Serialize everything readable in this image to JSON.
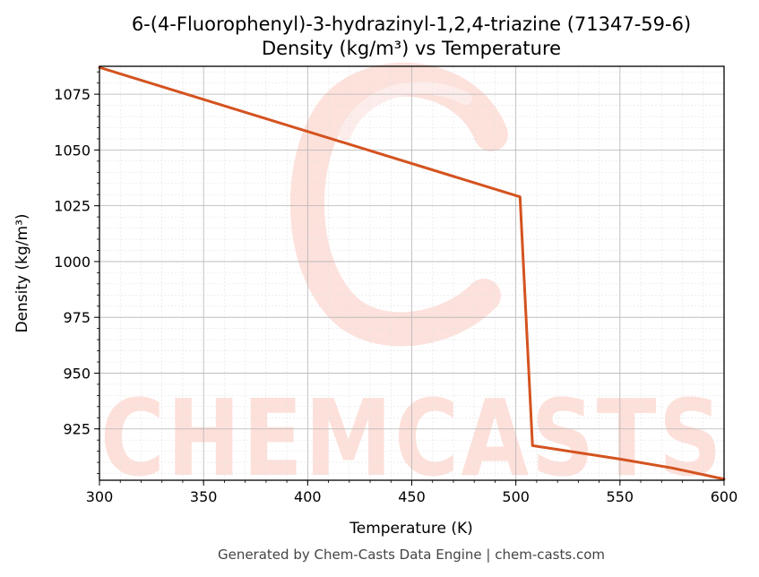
{
  "chart_data": {
    "type": "line",
    "title": "6-(4-Fluorophenyl)-3-hydrazinyl-1,2,4-triazine (71347-59-6)",
    "subtitle": "Density (kg/m³) vs Temperature",
    "xlabel": "Temperature (K)",
    "ylabel": "Density (kg/m³)",
    "xlim": [
      300,
      600
    ],
    "ylim": [
      902,
      1087.5
    ],
    "xticks": [
      300,
      350,
      400,
      450,
      500,
      550,
      600
    ],
    "yticks": [
      925,
      950,
      975,
      1000,
      1025,
      1050,
      1075
    ],
    "grid": true,
    "series": [
      {
        "color": "#d4531f",
        "x": [
          300,
          502,
          508,
          550,
          575,
          600
        ],
        "y": [
          1087,
          1029,
          917.5,
          911.5,
          907.5,
          902.5
        ]
      }
    ]
  },
  "watermark": "CHEMCASTS",
  "footer": "Generated by Chem-Casts Data Engine | chem-casts.com"
}
